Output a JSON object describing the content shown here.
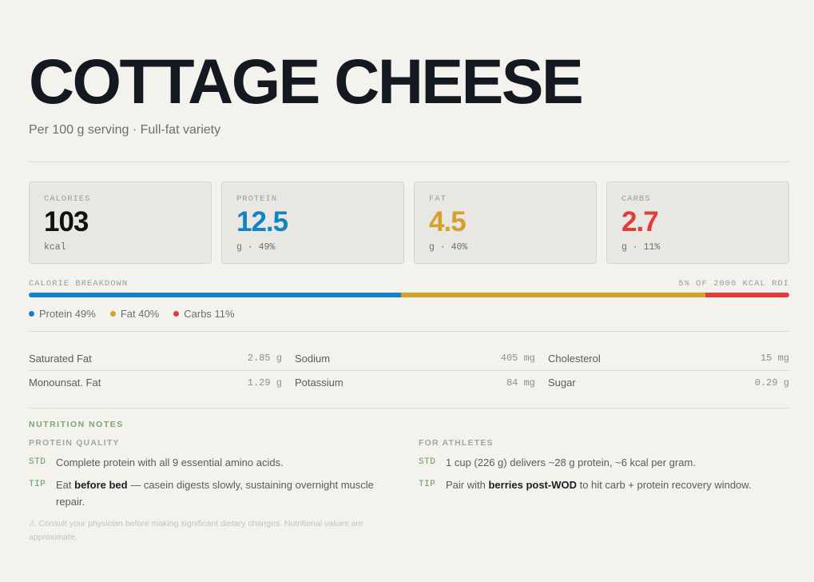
{
  "header": {
    "title": "COTTAGE CHEESE",
    "subtitle": "Per 100 g serving · Full-fat variety"
  },
  "cards": [
    {
      "label": "CALORIES",
      "value": "103",
      "unit": "kcal",
      "color": "#111111"
    },
    {
      "label": "PROTEIN",
      "value": "12.5",
      "unit": "g · 49%",
      "color": "#1383c7"
    },
    {
      "label": "FAT",
      "value": "4.5",
      "unit": "g · 40%",
      "color": "#d4a12a"
    },
    {
      "label": "CARBS",
      "value": "2.7",
      "unit": "g · 11%",
      "color": "#e03c3c"
    }
  ],
  "breakdown": {
    "label": "CALORIE BREAKDOWN",
    "rdi": "5% OF 2000 KCAL RDI",
    "segments": [
      {
        "name": "Protein",
        "legend": "Protein 49%",
        "percent": 49,
        "color": "#1383c7"
      },
      {
        "name": "Fat",
        "legend": "Fat 40%",
        "percent": 40,
        "color": "#d4a12a"
      },
      {
        "name": "Carbs",
        "legend": "Carbs 11%",
        "percent": 11,
        "color": "#e03c3c"
      }
    ]
  },
  "micros": [
    [
      {
        "name": "Saturated Fat",
        "value": "2.85 g"
      },
      {
        "name": "Sodium",
        "value": "405 mg"
      },
      {
        "name": "Cholesterol",
        "value": "15 mg"
      }
    ],
    [
      {
        "name": "Monounsat. Fat",
        "value": "1.29 g"
      },
      {
        "name": "Potassium",
        "value": "84 mg"
      },
      {
        "name": "Sugar",
        "value": "0.29 g"
      }
    ]
  ],
  "notes": {
    "title": "NUTRITION NOTES",
    "protein_quality": {
      "heading": "PROTEIN QUALITY",
      "std_tag": "STD",
      "std_text": "Complete protein with all 9 essential amino acids.",
      "tip_tag": "TIP",
      "tip_pre": "Eat ",
      "tip_bold": "before bed",
      "tip_post": " — casein digests slowly, sustaining overnight muscle repair."
    },
    "athletes": {
      "heading": "FOR ATHLETES",
      "std_tag": "STD",
      "std_text": "1 cup (226 g) delivers ~28 g protein, ~6 kcal per gram.",
      "tip_tag": "TIP",
      "tip_pre": "Pair with ",
      "tip_bold": "berries post-WOD",
      "tip_post": " to hit carb + protein recovery window."
    },
    "disclaimer": "⚠ Consult your physician before making significant dietary changes. Nutritional values are approximate."
  }
}
